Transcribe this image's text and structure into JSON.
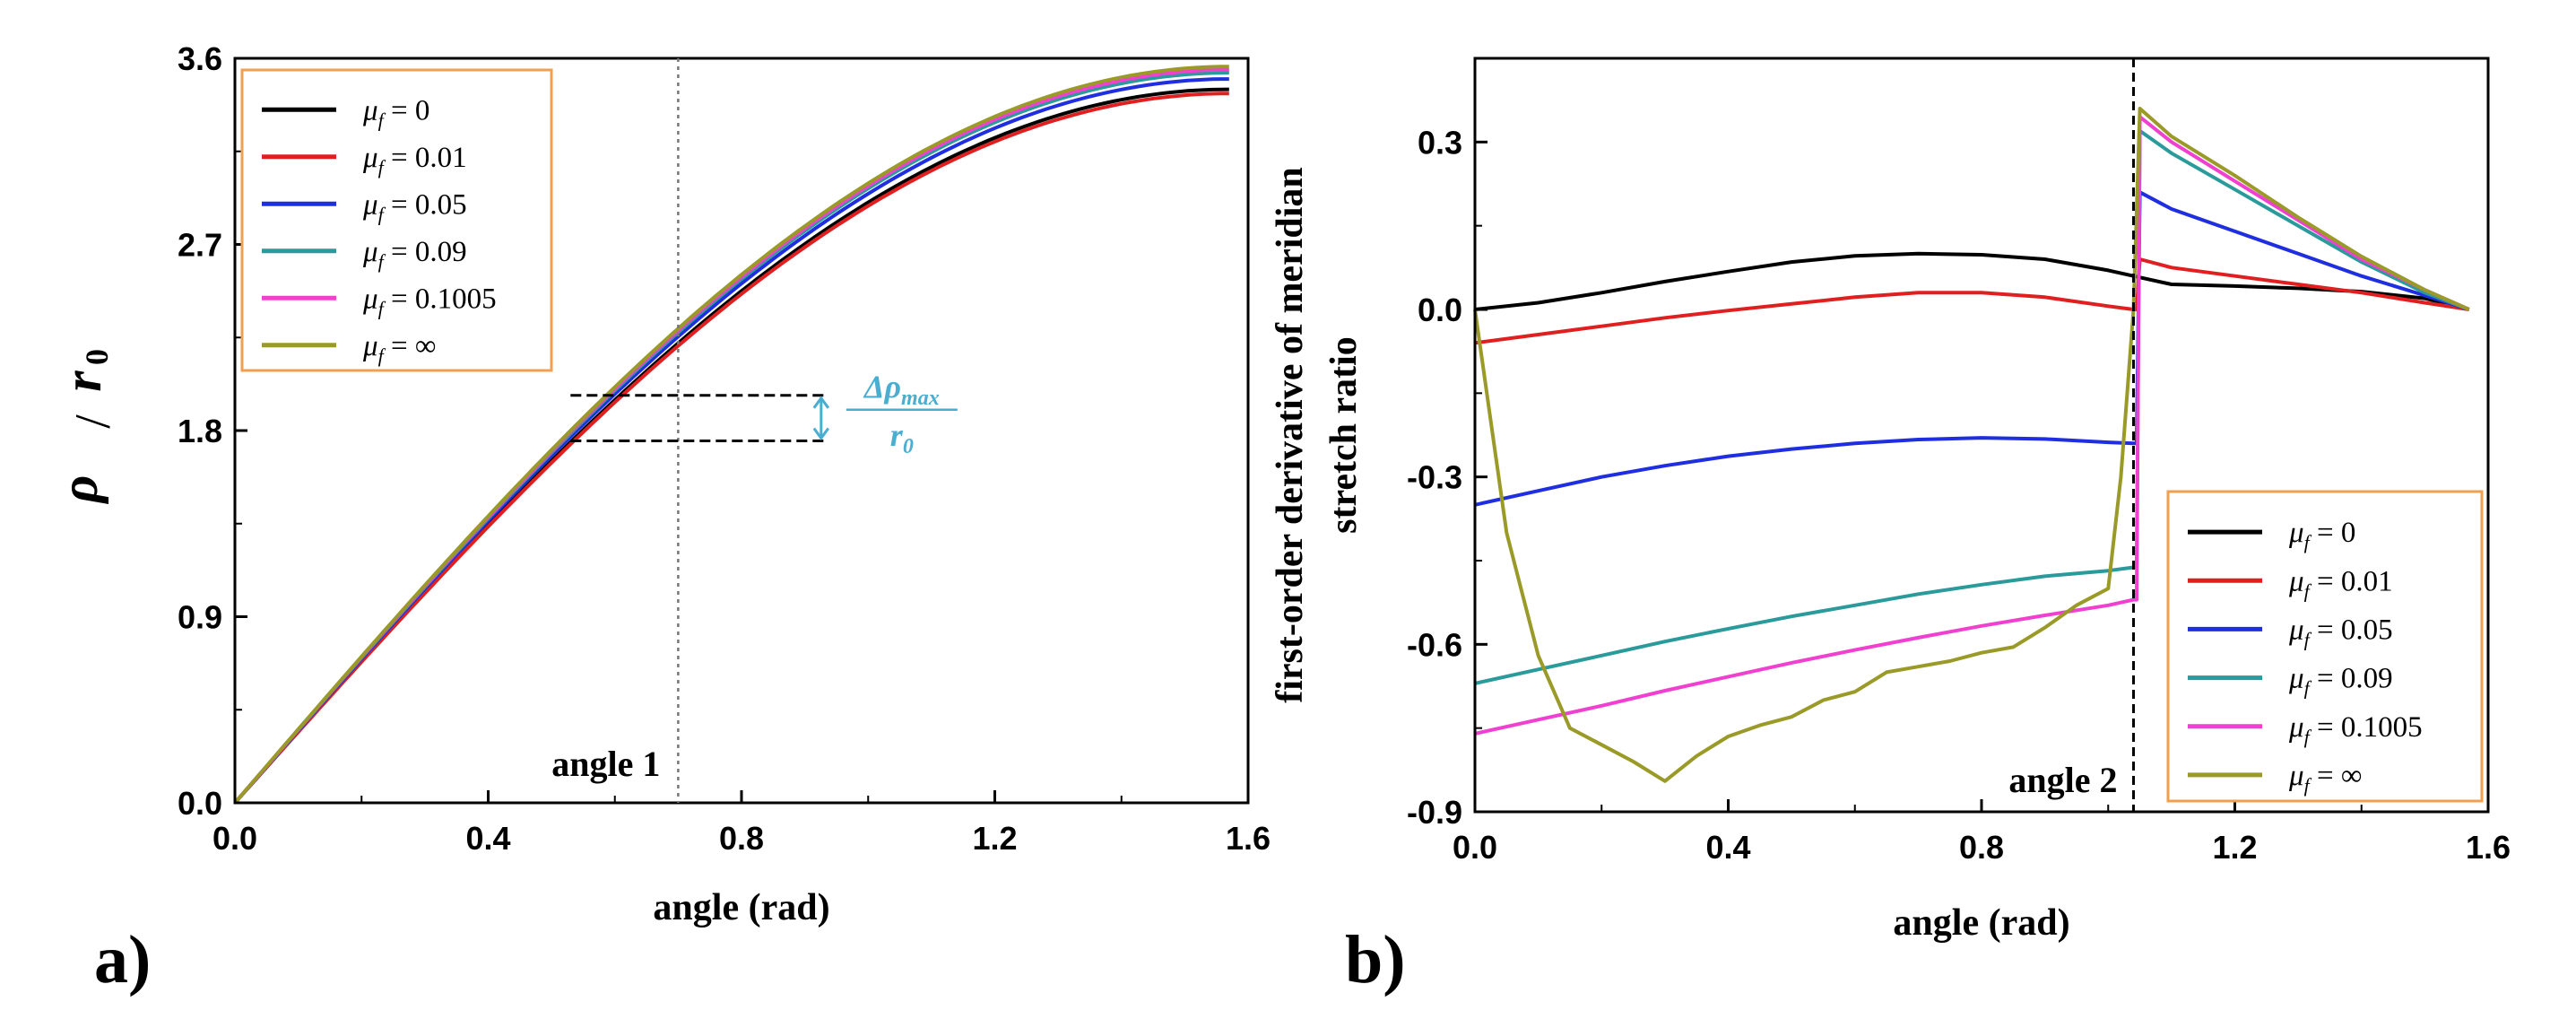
{
  "chart_data": [
    {
      "panel": "a)",
      "type": "line",
      "xlabel": "angle (rad)",
      "ylabel_main": "ρ",
      "ylabel_denom": "r",
      "ylabel_denom_sub": "0",
      "xlim": [
        0.0,
        1.6
      ],
      "ylim": [
        0.0,
        3.6
      ],
      "xticks": [
        0.0,
        0.4,
        0.8,
        1.2,
        1.6
      ],
      "xtick_labels": [
        "0.0",
        "0.4",
        "0.8",
        "1.2",
        "1.6"
      ],
      "yticks": [
        0.0,
        0.9,
        1.8,
        2.7,
        3.6
      ],
      "ytick_labels": [
        "0.0",
        "0.9",
        "1.8",
        "2.7",
        "3.6"
      ],
      "legend_position": "top-left",
      "legend_border_color": "#f0a050",
      "vertical_marker": {
        "x": 0.7,
        "label": "angle 1"
      },
      "delta_annotation": {
        "y_top": 1.97,
        "y_bottom": 1.75,
        "x_from": 0.53,
        "x_to": 0.93,
        "label_num": "Δρ",
        "label_num_sub": "max",
        "label_den": "r",
        "label_den_sub": "0",
        "color": "#4aaed0"
      },
      "series": [
        {
          "name": "μ_f = 0",
          "symbol": "μ",
          "sub": "f",
          "eq": " = 0",
          "color": "#000000",
          "scale": 3.45
        },
        {
          "name": "μ_f = 0.01",
          "symbol": "μ",
          "sub": "f",
          "eq": " = 0.01",
          "color": "#e02020",
          "scale": 3.43
        },
        {
          "name": "μ_f = 0.05",
          "symbol": "μ",
          "sub": "f",
          "eq": " = 0.05",
          "color": "#1f2fe0",
          "scale": 3.5
        },
        {
          "name": "μ_f = 0.09",
          "symbol": "μ",
          "sub": "f",
          "eq": " = 0.09",
          "color": "#2a9a9a",
          "scale": 3.53
        },
        {
          "name": "μ_f = 0.1005",
          "symbol": "μ",
          "sub": "f",
          "eq": " = 0.1005",
          "color": "#f040d0",
          "scale": 3.545
        },
        {
          "name": "μ_f = ∞",
          "symbol": "μ",
          "sub": "f",
          "eq": " = ∞",
          "color": "#9a9a28",
          "scale": 3.56
        }
      ],
      "x": [
        0.0,
        0.2,
        0.4,
        0.6,
        0.8,
        1.0,
        1.2,
        1.4,
        1.57
      ]
    },
    {
      "panel": "b)",
      "type": "line",
      "xlabel": "angle (rad)",
      "ylabel_line1": "first-order derivative of meridian",
      "ylabel_line2": "stretch ratio",
      "xlim": [
        0.0,
        1.6
      ],
      "ylim": [
        -0.9,
        0.45
      ],
      "xticks": [
        0.0,
        0.4,
        0.8,
        1.2,
        1.6
      ],
      "xtick_labels": [
        "0.0",
        "0.4",
        "0.8",
        "1.2",
        "1.6"
      ],
      "yticks": [
        -0.9,
        -0.6,
        -0.3,
        0.0,
        0.3
      ],
      "ytick_labels": [
        "-0.9",
        "-0.6",
        "-0.3",
        "0.0",
        "0.3"
      ],
      "legend_position": "bottom-right",
      "legend_border_color": "#f0a050",
      "vertical_marker": {
        "x": 1.04,
        "label": "angle 2"
      },
      "series": [
        {
          "name": "μ_f = 0",
          "symbol": "μ",
          "sub": "f",
          "eq": " = 0",
          "color": "#000000",
          "x": [
            0.0,
            0.1,
            0.2,
            0.3,
            0.4,
            0.5,
            0.6,
            0.7,
            0.8,
            0.9,
            1.0,
            1.04,
            1.06,
            1.1,
            1.2,
            1.3,
            1.4,
            1.5,
            1.57
          ],
          "y": [
            0.0,
            0.012,
            0.03,
            0.05,
            0.068,
            0.085,
            0.096,
            0.1,
            0.098,
            0.09,
            0.07,
            0.06,
            0.055,
            0.045,
            0.042,
            0.038,
            0.032,
            0.02,
            0.0
          ]
        },
        {
          "name": "μ_f = 0.01",
          "symbol": "μ",
          "sub": "f",
          "eq": " = 0.01",
          "color": "#e02020",
          "x": [
            0.0,
            0.1,
            0.2,
            0.3,
            0.4,
            0.5,
            0.6,
            0.7,
            0.8,
            0.9,
            1.0,
            1.04,
            1.045,
            1.05,
            1.1,
            1.2,
            1.3,
            1.4,
            1.5,
            1.57
          ],
          "y": [
            -0.06,
            -0.045,
            -0.03,
            -0.015,
            -0.002,
            0.01,
            0.022,
            0.03,
            0.03,
            0.022,
            0.006,
            0.0,
            0.0,
            0.09,
            0.075,
            0.06,
            0.045,
            0.03,
            0.012,
            0.0
          ]
        },
        {
          "name": "μ_f = 0.05",
          "symbol": "μ",
          "sub": "f",
          "eq": " = 0.05",
          "color": "#1f2fe0",
          "x": [
            0.0,
            0.1,
            0.2,
            0.3,
            0.4,
            0.5,
            0.6,
            0.7,
            0.8,
            0.9,
            1.0,
            1.04,
            1.045,
            1.05,
            1.1,
            1.2,
            1.3,
            1.4,
            1.5,
            1.57
          ],
          "y": [
            -0.35,
            -0.325,
            -0.3,
            -0.28,
            -0.263,
            -0.25,
            -0.24,
            -0.233,
            -0.23,
            -0.232,
            -0.238,
            -0.24,
            -0.24,
            0.21,
            0.18,
            0.14,
            0.1,
            0.06,
            0.025,
            0.0
          ]
        },
        {
          "name": "μ_f = 0.09",
          "symbol": "μ",
          "sub": "f",
          "eq": " = 0.09",
          "color": "#2a9a9a",
          "x": [
            0.0,
            0.1,
            0.2,
            0.3,
            0.4,
            0.5,
            0.6,
            0.7,
            0.8,
            0.9,
            1.0,
            1.04,
            1.045,
            1.05,
            1.1,
            1.2,
            1.3,
            1.4,
            1.5,
            1.57
          ],
          "y": [
            -0.67,
            -0.645,
            -0.62,
            -0.595,
            -0.572,
            -0.55,
            -0.53,
            -0.51,
            -0.493,
            -0.478,
            -0.468,
            -0.462,
            -0.462,
            0.32,
            0.28,
            0.215,
            0.15,
            0.085,
            0.03,
            0.0
          ]
        },
        {
          "name": "μ_f = 0.1005",
          "symbol": "μ",
          "sub": "f",
          "eq": " = 0.1005",
          "color": "#f040d0",
          "x": [
            0.0,
            0.1,
            0.2,
            0.3,
            0.4,
            0.5,
            0.6,
            0.7,
            0.8,
            0.9,
            1.0,
            1.04,
            1.045,
            1.05,
            1.1,
            1.2,
            1.3,
            1.4,
            1.5,
            1.57
          ],
          "y": [
            -0.76,
            -0.735,
            -0.71,
            -0.683,
            -0.658,
            -0.633,
            -0.61,
            -0.588,
            -0.567,
            -0.548,
            -0.53,
            -0.52,
            -0.52,
            0.345,
            0.3,
            0.23,
            0.16,
            0.09,
            0.035,
            0.0
          ]
        },
        {
          "name": "μ_f = ∞",
          "symbol": "μ",
          "sub": "f",
          "eq": " = ∞",
          "color": "#9a9a28",
          "x": [
            0.0,
            0.05,
            0.1,
            0.15,
            0.2,
            0.25,
            0.3,
            0.35,
            0.4,
            0.45,
            0.5,
            0.55,
            0.6,
            0.65,
            0.7,
            0.75,
            0.8,
            0.85,
            0.9,
            0.95,
            1.0,
            1.02,
            1.04,
            1.05,
            1.1,
            1.2,
            1.3,
            1.4,
            1.5,
            1.57
          ],
          "y": [
            0.0,
            -0.4,
            -0.62,
            -0.75,
            -0.78,
            -0.81,
            -0.845,
            -0.8,
            -0.765,
            -0.745,
            -0.73,
            -0.7,
            -0.685,
            -0.65,
            -0.64,
            -0.63,
            -0.615,
            -0.605,
            -0.57,
            -0.53,
            -0.5,
            -0.3,
            0.0,
            0.36,
            0.31,
            0.24,
            0.165,
            0.095,
            0.035,
            0.0
          ]
        }
      ]
    }
  ]
}
